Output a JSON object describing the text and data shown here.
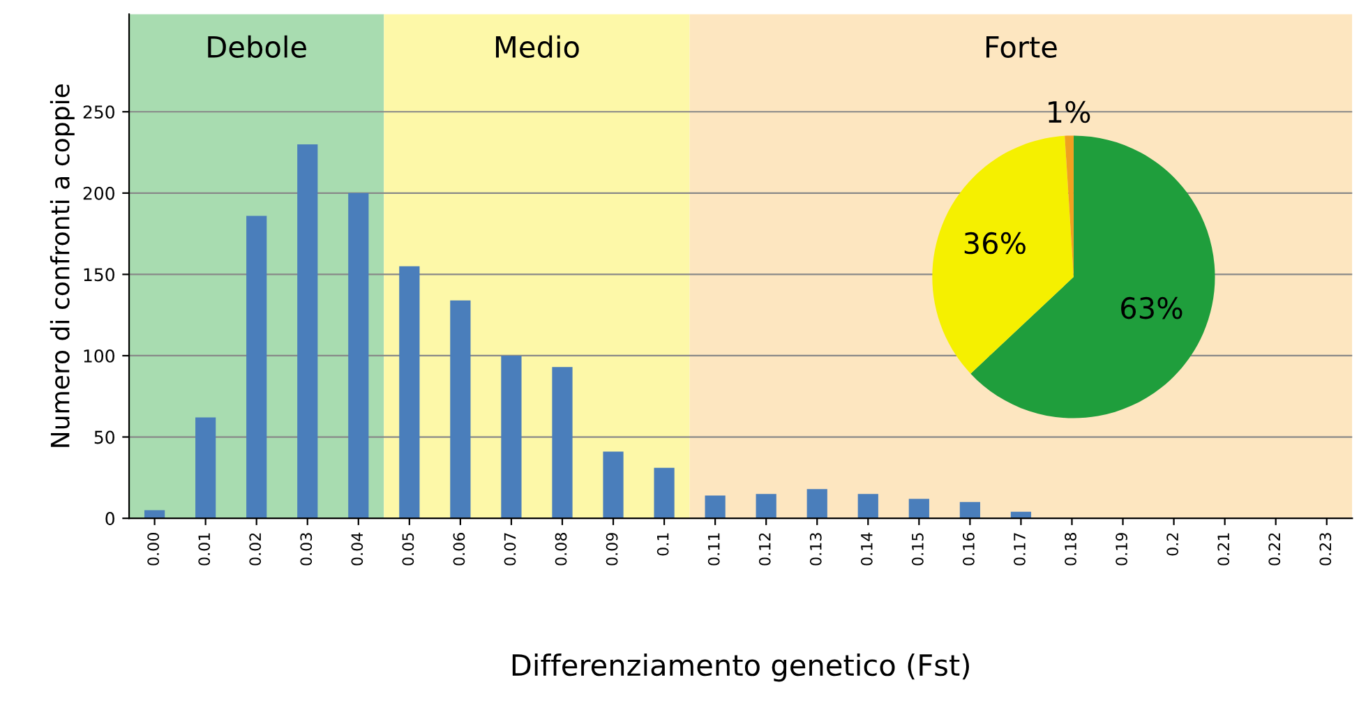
{
  "chart_data": [
    {
      "type": "bar",
      "xlabel": "Differenziamento genetico (Fst)",
      "ylabel": "Numero di confronti a coppie",
      "categories": [
        "0.00",
        "0.01",
        "0.02",
        "0.03",
        "0.04",
        "0.05",
        "0.06",
        "0.07",
        "0.08",
        "0.09",
        "0.1",
        "0.11",
        "0.12",
        "0.13",
        "0.14",
        "0.15",
        "0.16",
        "0.17",
        "0.18",
        "0.19",
        "0.2",
        "0.21",
        "0.22",
        "0.23"
      ],
      "values": [
        5,
        62,
        186,
        230,
        200,
        155,
        134,
        100,
        93,
        41,
        31,
        14,
        15,
        18,
        15,
        12,
        10,
        4,
        0,
        0,
        0,
        0,
        0,
        0
      ],
      "color": "#4a7ebb",
      "ylim": [
        0,
        310
      ],
      "yticks": [
        0,
        50,
        100,
        150,
        200,
        250
      ],
      "grid": "y",
      "legend": false,
      "bands": [
        {
          "axis": "x",
          "from": "0.00",
          "to": "0.04",
          "label": "Debole",
          "color": "#a8dcb0"
        },
        {
          "axis": "x",
          "from": "0.05",
          "to": "0.1",
          "label": "Medio",
          "color": "#fdf8a8"
        },
        {
          "axis": "x",
          "from": "0.11",
          "to": "0.23",
          "label": "Forte",
          "color": "#fde6c0"
        }
      ]
    },
    {
      "type": "pie",
      "categories": [
        null,
        null,
        null
      ],
      "values": [
        63,
        36,
        1
      ],
      "colors": [
        "#1f9e3c",
        "#f5f000",
        "#f0a020"
      ],
      "value_labels": [
        "63%",
        "36%",
        "1%"
      ]
    }
  ]
}
